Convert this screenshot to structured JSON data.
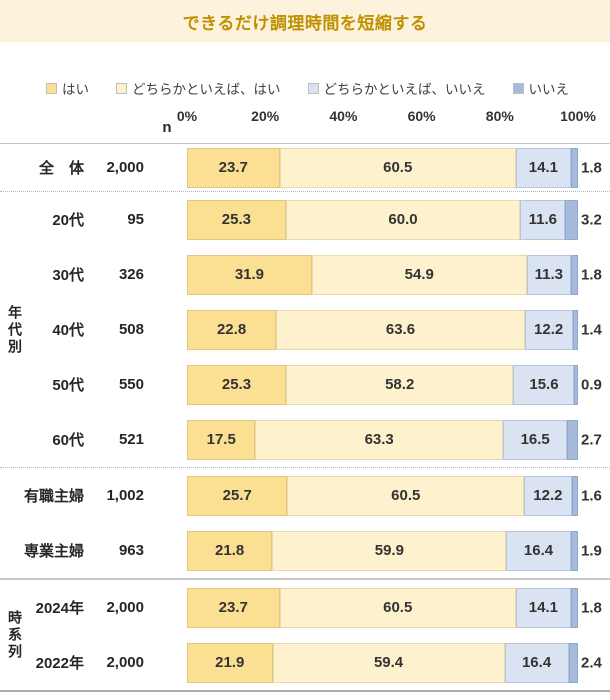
{
  "chart_data": {
    "type": "bar",
    "orientation": "horizontal-stacked",
    "title": "できるだけ調理時間を短縮する",
    "n_header": "n",
    "legend": [
      "はい",
      "どちらかといえば、はい",
      "どちらかといえば、いいえ",
      "いいえ"
    ],
    "colors": [
      "#FBDF92",
      "#FDF2CD",
      "#DAE3F1",
      "#A6BBDB"
    ],
    "border_colors": [
      "#E2C87E",
      "#E8DAAC",
      "#B5C4DF",
      "#90A7CF"
    ],
    "x_ticks": [
      "0%",
      "20%",
      "40%",
      "60%",
      "80%",
      "100%"
    ],
    "xlim": [
      0,
      100
    ],
    "grid": false,
    "legend_position": "top",
    "groups": [
      {
        "label": "",
        "divider_bottom": "dotted",
        "rows": [
          {
            "label": "全　体",
            "n": "2,000",
            "values": [
              23.7,
              60.5,
              14.1,
              1.8
            ]
          }
        ]
      },
      {
        "label": "年代別",
        "divider_bottom": "dotted",
        "rows": [
          {
            "label": "20代",
            "n": "95",
            "values": [
              25.3,
              60.0,
              11.6,
              3.2
            ]
          },
          {
            "label": "30代",
            "n": "326",
            "values": [
              31.9,
              54.9,
              11.3,
              1.8
            ]
          },
          {
            "label": "40代",
            "n": "508",
            "values": [
              22.8,
              63.6,
              12.2,
              1.4
            ]
          },
          {
            "label": "50代",
            "n": "550",
            "values": [
              25.3,
              58.2,
              15.6,
              0.9
            ]
          },
          {
            "label": "60代",
            "n": "521",
            "values": [
              17.5,
              63.3,
              16.5,
              2.7
            ]
          }
        ]
      },
      {
        "label": "",
        "divider_bottom": "solid",
        "rows": [
          {
            "label": "有職主婦",
            "n": "1,002",
            "values": [
              25.7,
              60.5,
              12.2,
              1.6
            ]
          },
          {
            "label": "専業主婦",
            "n": "963",
            "values": [
              21.8,
              59.9,
              16.4,
              1.9
            ]
          }
        ]
      },
      {
        "label": "時系列",
        "divider_bottom": "none",
        "rows": [
          {
            "label": "2024年",
            "n": "2,000",
            "values": [
              23.7,
              60.5,
              14.1,
              1.8
            ]
          },
          {
            "label": "2022年",
            "n": "2,000",
            "values": [
              21.9,
              59.4,
              16.4,
              2.4
            ]
          }
        ]
      }
    ]
  },
  "style_colors": {
    "title_bg": "#FDF3DC",
    "title_text": "#BF9000",
    "label_text": "#262626"
  }
}
